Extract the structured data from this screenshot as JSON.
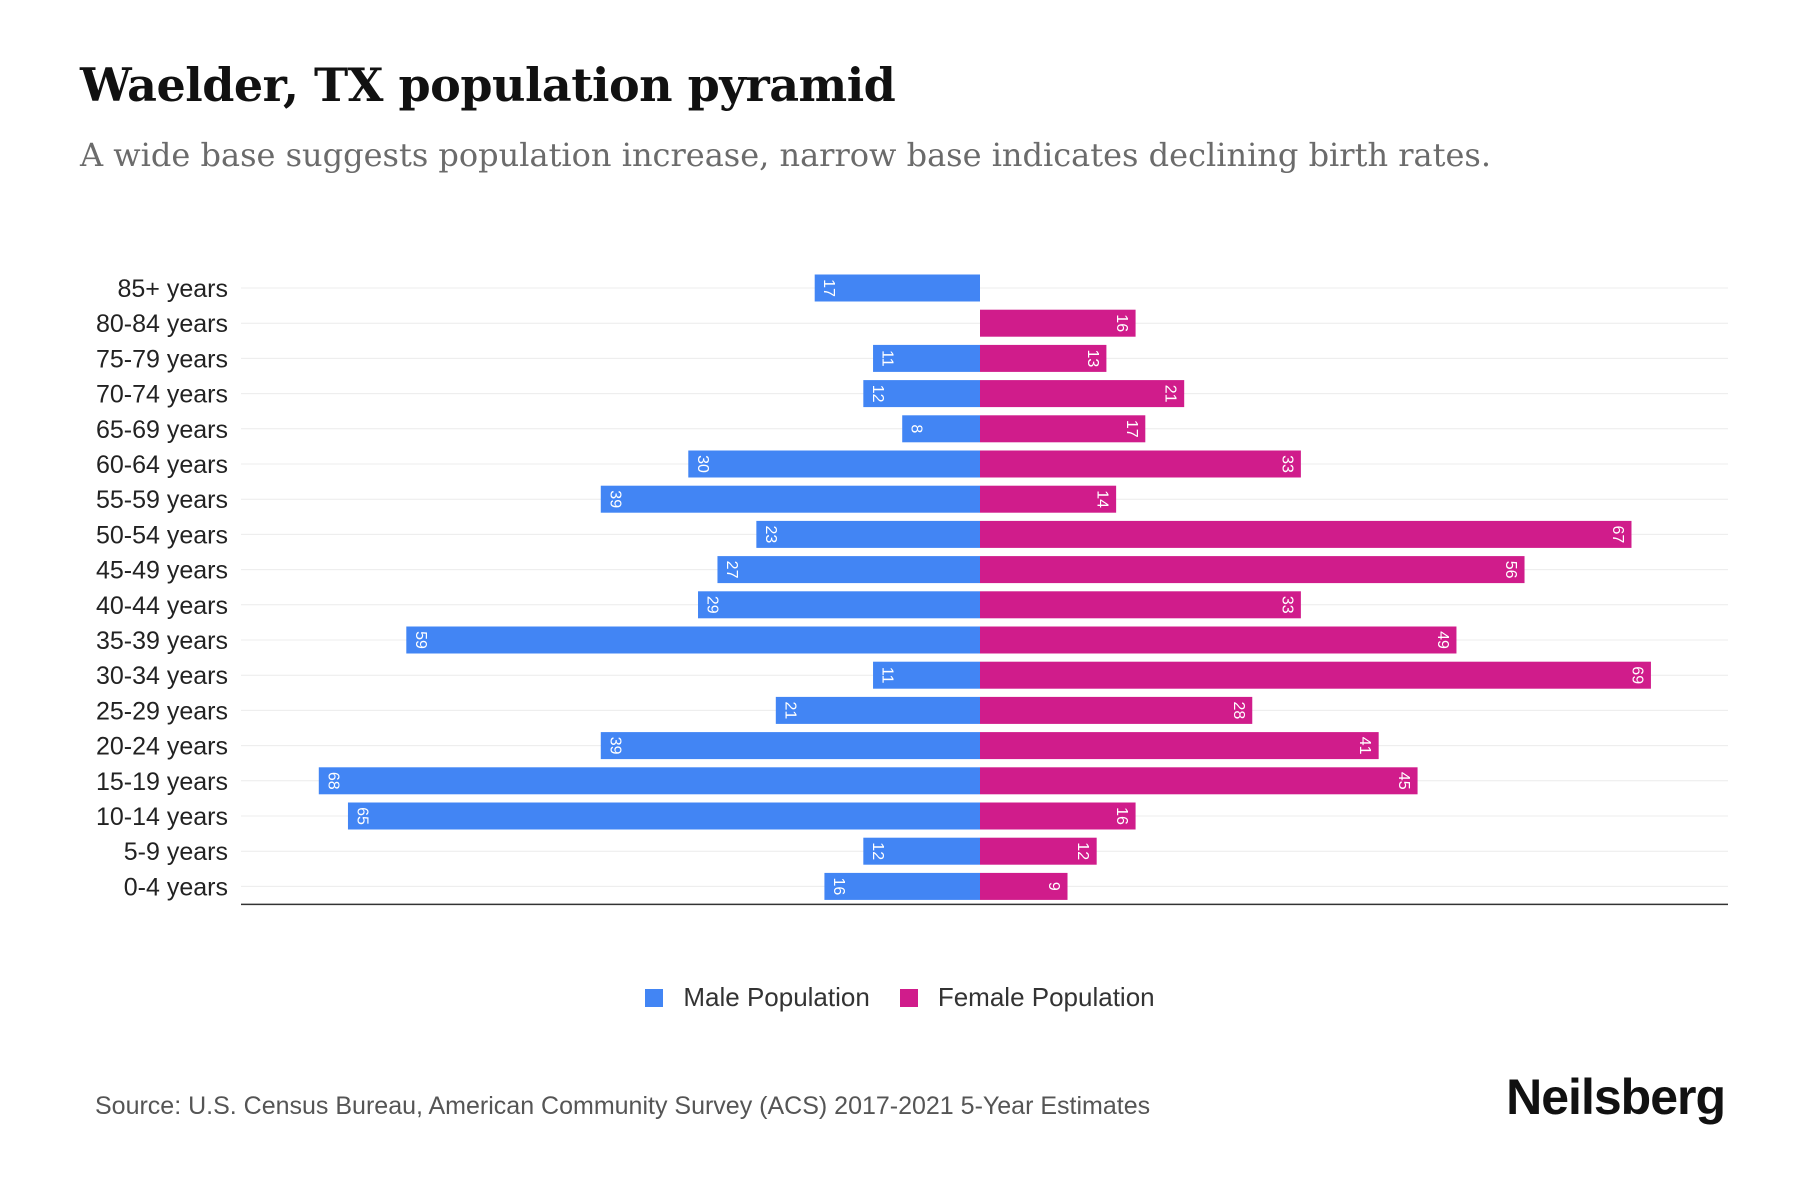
{
  "header": {
    "title": "Waelder, TX population pyramid",
    "subtitle": "A wide base suggests population increase, narrow base indicates declining birth rates."
  },
  "chart_data": {
    "type": "bar",
    "orientation": "horizontal-pyramid",
    "title": "Waelder, TX population pyramid",
    "categories": [
      "85+ years",
      "80-84 years",
      "75-79 years",
      "70-74 years",
      "65-69 years",
      "60-64 years",
      "55-59 years",
      "50-54 years",
      "45-49 years",
      "40-44 years",
      "35-39 years",
      "30-34 years",
      "25-29 years",
      "20-24 years",
      "15-19 years",
      "10-14 years",
      "5-9 years",
      "0-4 years"
    ],
    "series": [
      {
        "name": "Male Population",
        "color": "#4285f4",
        "values": [
          17,
          0,
          11,
          12,
          8,
          30,
          39,
          23,
          27,
          29,
          59,
          11,
          21,
          39,
          68,
          65,
          12,
          16
        ]
      },
      {
        "name": "Female Population",
        "color": "#d01c8b",
        "values": [
          0,
          16,
          13,
          21,
          17,
          33,
          14,
          67,
          56,
          33,
          49,
          69,
          28,
          41,
          45,
          16,
          12,
          9
        ]
      }
    ],
    "xlim": [
      -76,
      76
    ],
    "grid": true,
    "legend_position": "bottom"
  },
  "legend": {
    "male_label": "Male Population",
    "female_label": "Female Population",
    "male_color": "#4285f4",
    "female_color": "#d01c8b"
  },
  "footer": {
    "source": "Source: U.S. Census Bureau, American Community Survey (ACS) 2017-2021 5-Year Estimates",
    "brand": "Neilsberg"
  }
}
